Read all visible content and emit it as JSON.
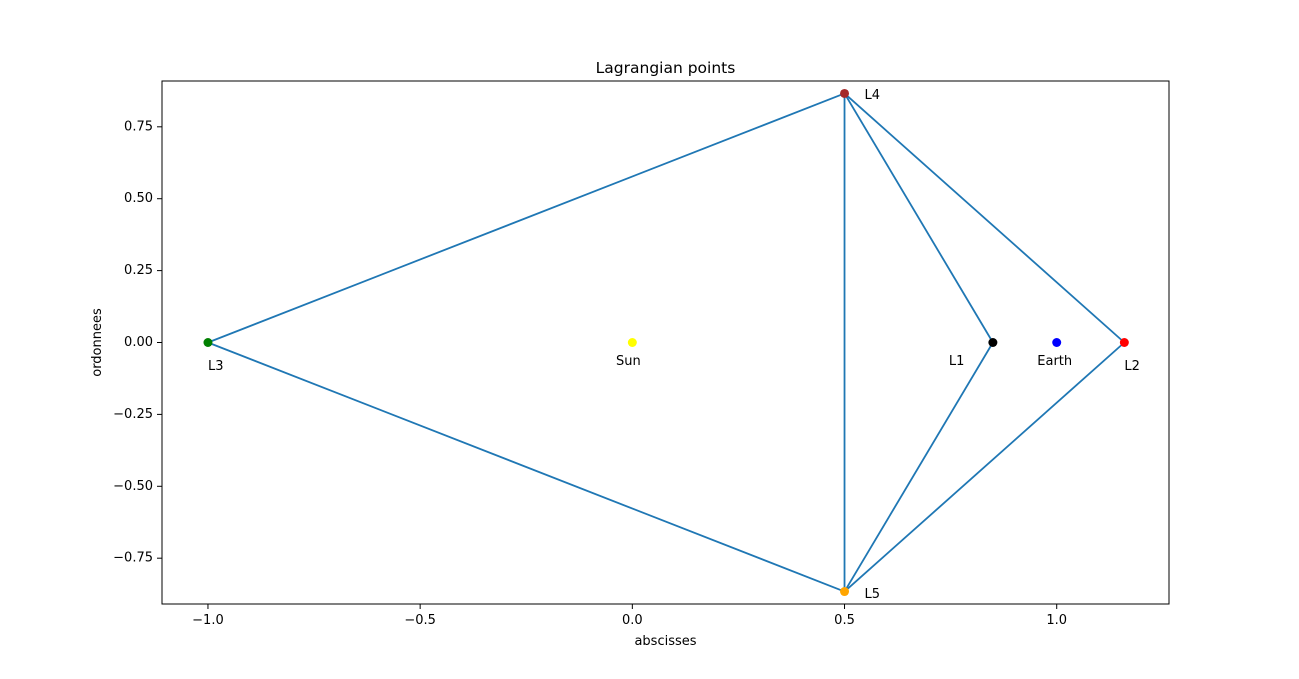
{
  "chart_data": {
    "type": "scatter",
    "title": "Lagrangian points",
    "xlabel": "abscisses",
    "ylabel": "ordonnees",
    "xlim": [
      -1.1083,
      1.2646
    ],
    "ylim": [
      -0.9093,
      0.9093
    ],
    "xticks": [
      -1.0,
      -0.5,
      0.0,
      0.5,
      1.0
    ],
    "xtick_labels": [
      "−1.0",
      "−0.5",
      "0.0",
      "0.5",
      "1.0"
    ],
    "yticks": [
      -0.75,
      -0.5,
      -0.25,
      0.0,
      0.25,
      0.5,
      0.75
    ],
    "ytick_labels": [
      "−0.75",
      "−0.50",
      "−0.25",
      "0.00",
      "0.25",
      "0.50",
      "0.75"
    ],
    "grid": false,
    "line_color": "#1f77b4",
    "points": [
      {
        "label": "L1",
        "x": 0.8496,
        "y": 0.0,
        "color": "#000000"
      },
      {
        "label": "L2",
        "x": 1.1594,
        "y": 0.0,
        "color": "#ff0000"
      },
      {
        "label": "L3",
        "x": -1.0,
        "y": 0.0,
        "color": "#008000"
      },
      {
        "label": "L4",
        "x": 0.5,
        "y": 0.866,
        "color": "#a52a2a"
      },
      {
        "label": "L5",
        "x": 0.5,
        "y": -0.866,
        "color": "#ffa500"
      },
      {
        "label": "Sun",
        "x": 0.0,
        "y": 0.0,
        "color": "#ffff00"
      },
      {
        "label": "Earth",
        "x": 1.0,
        "y": 0.0,
        "color": "#0000ff"
      }
    ],
    "segments": [
      [
        "L4",
        "L3"
      ],
      [
        "L3",
        "L5"
      ],
      [
        "L4",
        "L5"
      ],
      [
        "L4",
        "L1"
      ],
      [
        "L1",
        "L5"
      ],
      [
        "L4",
        "L2"
      ],
      [
        "L2",
        "L5"
      ]
    ]
  }
}
